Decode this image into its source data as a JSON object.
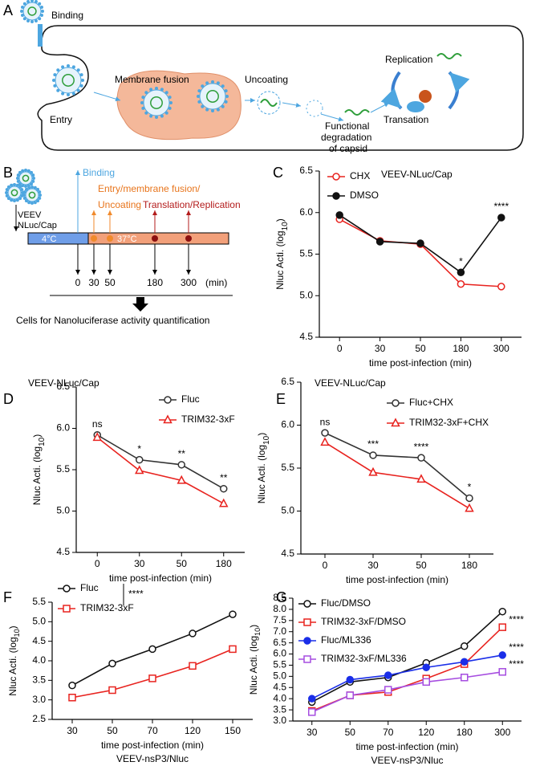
{
  "panel_a": {
    "label": "A",
    "binding": "Binding",
    "entry": "Entry",
    "membrane_fusion": "Membrane fusion",
    "uncoating": "Uncoating",
    "replication": "Replication",
    "degradation": [
      "Functional",
      "degradation",
      "of capsid"
    ],
    "translation": "Transation"
  },
  "panel_b": {
    "label": "B",
    "binding": "Binding",
    "virus": [
      "VEEV",
      "NLuc/Cap"
    ],
    "entry": [
      "Entry/membrane fusion/",
      "Uncoating"
    ],
    "translation": "Translation/Replication",
    "temp_cold": "4°C",
    "temp_warm": "37°C",
    "times": [
      "0",
      "30",
      "50",
      "180",
      "300"
    ],
    "unit": "(min)",
    "readout": "Cells for Nanoluciferase activity quantification"
  },
  "chart_data": [
    {
      "type": "line",
      "label": "C",
      "title": "VEEV-NLuc/Cap",
      "xlabel": "time post-infection (min)",
      "ylabel": [
        "Nluc Acti. (log",
        "10",
        ")"
      ],
      "categories": [
        "0",
        "30",
        "50",
        "180",
        "300"
      ],
      "series": [
        {
          "name": "CHX",
          "color": "#e8231f",
          "marker": "open-circle",
          "values": [
            5.92,
            5.66,
            5.62,
            5.14,
            5.11
          ]
        },
        {
          "name": "DMSO",
          "color": "#111111",
          "marker": "filled-circle",
          "values": [
            5.97,
            5.65,
            5.63,
            5.28,
            5.94
          ]
        }
      ],
      "annotations": [
        null,
        null,
        null,
        "*",
        "****"
      ],
      "ylim": [
        4.5,
        6.5
      ],
      "yticks": [
        4.5,
        {
          "value": 5,
          "label": "5.0"
        },
        5.5,
        {
          "value": 6,
          "label": "6.0"
        },
        6.5
      ]
    },
    {
      "type": "line",
      "label": "D",
      "title": "VEEV-NLuc/Cap",
      "xlabel": "time post-infection (min)",
      "ylabel": [
        "Nluc Acti. (log",
        "10",
        ")"
      ],
      "categories": [
        "0",
        "30",
        "50",
        "180"
      ],
      "series": [
        {
          "name": "Fluc",
          "color": "#333333",
          "marker": "open-circle",
          "values": [
            5.92,
            5.62,
            5.56,
            5.27
          ]
        },
        {
          "name": "TRIM32-3xF",
          "color": "#e8231f",
          "marker": "open-triangle",
          "values": [
            5.89,
            5.49,
            5.37,
            5.09
          ]
        }
      ],
      "annotations": [
        "ns",
        "*",
        "**",
        "**"
      ],
      "ylim": [
        4.5,
        6.5
      ],
      "yticks": [
        4.5,
        {
          "value": 5,
          "label": "5.0"
        },
        5.5,
        {
          "value": 6,
          "label": "6.0"
        },
        6.5
      ]
    },
    {
      "type": "line",
      "label": "E",
      "title": "VEEV-NLuc/Cap",
      "xlabel": "time post-infection (min)",
      "ylabel": [
        "Nluc Acti. (log",
        "10",
        ")"
      ],
      "categories": [
        "0",
        "30",
        "50",
        "180"
      ],
      "series": [
        {
          "name": "Fluc+CHX",
          "color": "#333333",
          "marker": "open-circle",
          "values": [
            5.91,
            5.65,
            5.62,
            5.15
          ]
        },
        {
          "name": "TRIM32-3xF+CHX",
          "color": "#e8231f",
          "marker": "open-triangle",
          "values": [
            5.8,
            5.45,
            5.37,
            5.03
          ]
        }
      ],
      "annotations": [
        "ns",
        "***",
        "****",
        "*"
      ],
      "ylim": [
        4.5,
        6.5
      ],
      "yticks": [
        4.5,
        {
          "value": 5,
          "label": "5.0"
        },
        5.5,
        {
          "value": 6,
          "label": "6.0"
        },
        6.5
      ]
    },
    {
      "type": "line",
      "label": "F",
      "xlabel": "time post-infection (min)",
      "subtitle": "VEEV-nsP3/Nluc",
      "ylabel": [
        "Nluc Acti. (log",
        "10",
        ")"
      ],
      "categories": [
        "30",
        "50",
        "70",
        "120",
        "150"
      ],
      "series": [
        {
          "name": "Fluc",
          "color": "#111111",
          "marker": "open-circle",
          "values": [
            3.37,
            3.93,
            4.3,
            4.7,
            5.19
          ]
        },
        {
          "name": "TRIM32-3xF",
          "color": "#e8231f",
          "marker": "open-square",
          "values": [
            3.06,
            3.25,
            3.55,
            3.87,
            4.3
          ]
        }
      ],
      "significance": "****",
      "ylim": [
        2.5,
        5.5
      ],
      "yticks": [
        2.5,
        {
          "value": 3,
          "label": "3.0"
        },
        3.5,
        {
          "value": 4,
          "label": "4.0"
        },
        4.5,
        {
          "value": 5,
          "label": "5.0"
        },
        5.5
      ]
    },
    {
      "type": "line",
      "label": "G",
      "xlabel": "time post-infection (min)",
      "subtitle": "VEEV-nsP3/Nluc",
      "ylabel": [
        "Nluc Acti. (log",
        "10",
        ")"
      ],
      "categories": [
        "30",
        "50",
        "70",
        "120",
        "180",
        "300"
      ],
      "series": [
        {
          "name": "Fluc/DMSO",
          "color": "#111111",
          "marker": "open-circle",
          "values": [
            3.85,
            4.75,
            4.95,
            5.6,
            6.35,
            7.9
          ]
        },
        {
          "name": "TRIM32-3xF/DMSO",
          "color": "#e8231f",
          "marker": "open-square",
          "values": [
            3.45,
            4.15,
            4.3,
            4.9,
            5.55,
            7.2
          ]
        },
        {
          "name": "Fluc/ML336",
          "color": "#1a2ee8",
          "marker": "filled-circle",
          "values": [
            4.0,
            4.85,
            5.05,
            5.4,
            5.65,
            5.95
          ]
        },
        {
          "name": "TRIM32-3xF/ML336",
          "color": "#a64de0",
          "marker": "open-square",
          "values": [
            3.4,
            4.15,
            4.4,
            4.75,
            4.95,
            5.2
          ]
        }
      ],
      "series_annotations": [
        null,
        "****",
        "****",
        "****"
      ],
      "ylim": [
        3,
        8.5
      ],
      "yticks": [
        {
          "value": 3,
          "label": "3.0"
        },
        3.5,
        {
          "value": 4,
          "label": "4.0"
        },
        4.5,
        {
          "value": 5,
          "label": "5.0"
        },
        5.5,
        {
          "value": 6,
          "label": "6.0"
        },
        6.5,
        {
          "value": 7,
          "label": "7.0"
        },
        7.5,
        {
          "value": 8,
          "label": "8.0"
        },
        8.5
      ]
    }
  ]
}
